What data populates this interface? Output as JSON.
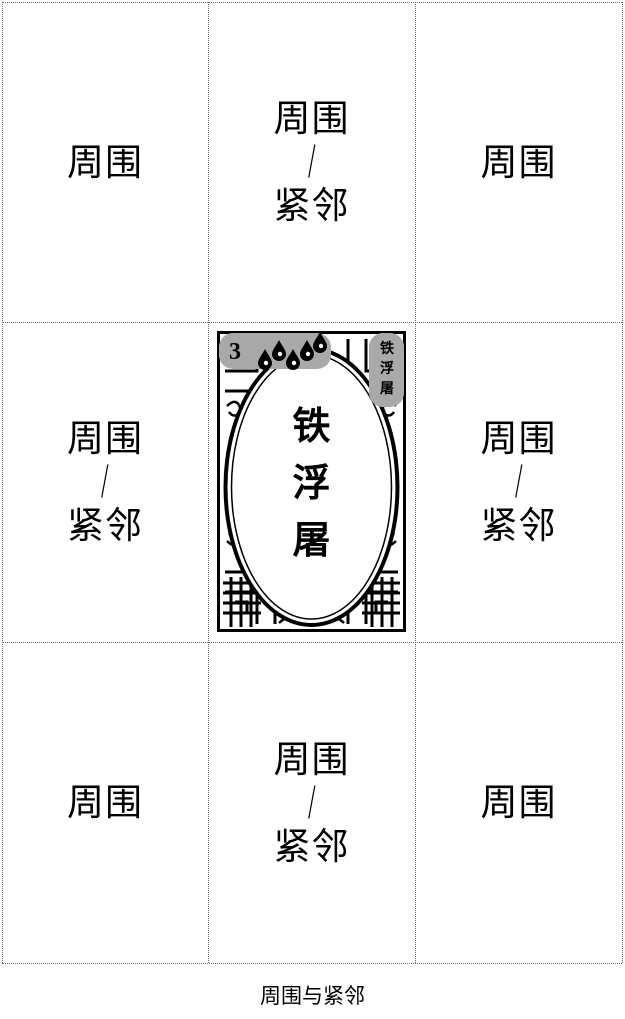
{
  "cells": {
    "top_left": "周围",
    "top_center": {
      "top": "周围",
      "sep": "/",
      "bottom": "紧邻"
    },
    "top_right": "周围",
    "mid_left": {
      "top": "周围",
      "sep": "/",
      "bottom": "紧邻"
    },
    "mid_right": {
      "top": "周围",
      "sep": "/",
      "bottom": "紧邻"
    },
    "bottom_left": "周围",
    "bottom_center": {
      "top": "周围",
      "sep": "/",
      "bottom": "紧邻"
    },
    "bottom_right": "周围"
  },
  "card": {
    "cost": "3",
    "drop_count": 5,
    "side_title": [
      "铁",
      "浮",
      "屠"
    ],
    "center_title": [
      "铁",
      "浮",
      "屠"
    ],
    "badge_color": "#a9a9a9",
    "drop_icon": "water-drop-icon"
  },
  "caption": "周围与紧邻"
}
